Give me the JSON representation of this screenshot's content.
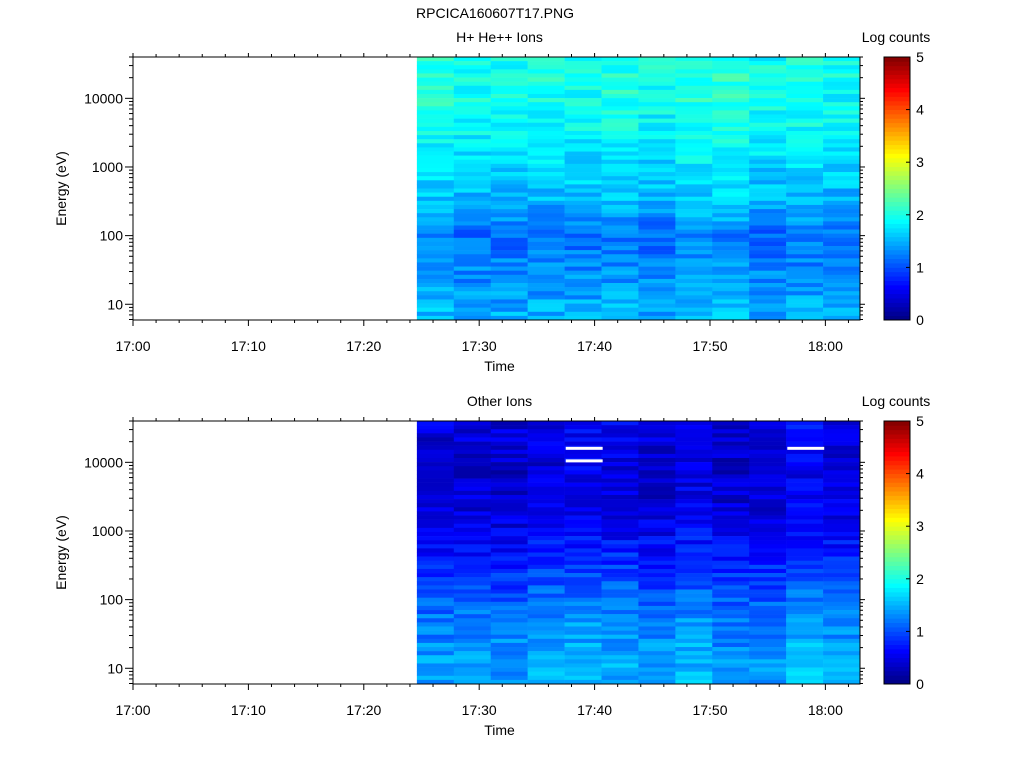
{
  "figure": {
    "title": "RPCICA160607T17.PNG"
  },
  "chart_data": [
    {
      "type": "heatmap",
      "title": "H+ He++ Ions",
      "xlabel": "Time",
      "ylabel": "Energy (eV)",
      "y_scale": "log",
      "xlim": [
        "17:00",
        "18:03"
      ],
      "ylim": [
        5.9,
        40000
      ],
      "x_ticks": [
        "17:00",
        "17:10",
        "17:20",
        "17:30",
        "17:40",
        "17:50",
        "18:00"
      ],
      "y_ticks": [
        "10",
        "100",
        "1000",
        "10000"
      ],
      "data_start": "17:24.6",
      "time_bin_minutes": 3.2,
      "colorbar": {
        "label": "Log counts",
        "range": [
          0,
          5
        ],
        "ticks": [
          "0",
          "1",
          "2",
          "3",
          "4",
          "5"
        ]
      },
      "rows_log_counts": [
        {
          "energy": 35000,
          "value": 2.0
        },
        {
          "energy": 20000,
          "value": 2.05
        },
        {
          "energy": 10000,
          "value": 2.0
        },
        {
          "energy": 5000,
          "value": 1.95
        },
        {
          "energy": 2000,
          "value": 1.85
        },
        {
          "energy": 1000,
          "value": 1.75
        },
        {
          "energy": 500,
          "value": 1.65
        },
        {
          "energy": 200,
          "value": 1.45
        },
        {
          "energy": 100,
          "value": 1.2
        },
        {
          "energy": 50,
          "value": 1.3
        },
        {
          "energy": 20,
          "value": 1.4
        },
        {
          "energy": 10,
          "value": 1.5
        },
        {
          "energy": 7,
          "value": 1.55
        }
      ],
      "gaps": []
    },
    {
      "type": "heatmap",
      "title": "Other Ions",
      "xlabel": "Time",
      "ylabel": "Energy (eV)",
      "y_scale": "log",
      "xlim": [
        "17:00",
        "18:03"
      ],
      "ylim": [
        5.9,
        40000
      ],
      "x_ticks": [
        "17:00",
        "17:10",
        "17:20",
        "17:30",
        "17:40",
        "17:50",
        "18:00"
      ],
      "y_ticks": [
        "10",
        "100",
        "1000",
        "10000"
      ],
      "data_start": "17:24.6",
      "time_bin_minutes": 3.2,
      "colorbar": {
        "label": "Log counts",
        "range": [
          0,
          5
        ],
        "ticks": [
          "0",
          "1",
          "2",
          "3",
          "4",
          "5"
        ]
      },
      "rows_log_counts": [
        {
          "energy": 35000,
          "value": 0.55
        },
        {
          "energy": 20000,
          "value": 0.5
        },
        {
          "energy": 10000,
          "value": 0.45
        },
        {
          "energy": 5000,
          "value": 0.45
        },
        {
          "energy": 2000,
          "value": 0.5
        },
        {
          "energy": 1000,
          "value": 0.6
        },
        {
          "energy": 500,
          "value": 0.75
        },
        {
          "energy": 200,
          "value": 0.95
        },
        {
          "energy": 100,
          "value": 1.15
        },
        {
          "energy": 50,
          "value": 1.3
        },
        {
          "energy": 20,
          "value": 1.4
        },
        {
          "energy": 10,
          "value": 1.5
        },
        {
          "energy": 7,
          "value": 1.45
        }
      ],
      "gaps": [
        {
          "time_start": "17:37.5",
          "time_end": "17:40.7",
          "energy": 16000
        },
        {
          "time_start": "17:37.5",
          "time_end": "17:40.7",
          "energy": 10500
        },
        {
          "time_start": "17:56.7",
          "time_end": "17:59.9",
          "energy": 16000
        }
      ]
    }
  ]
}
